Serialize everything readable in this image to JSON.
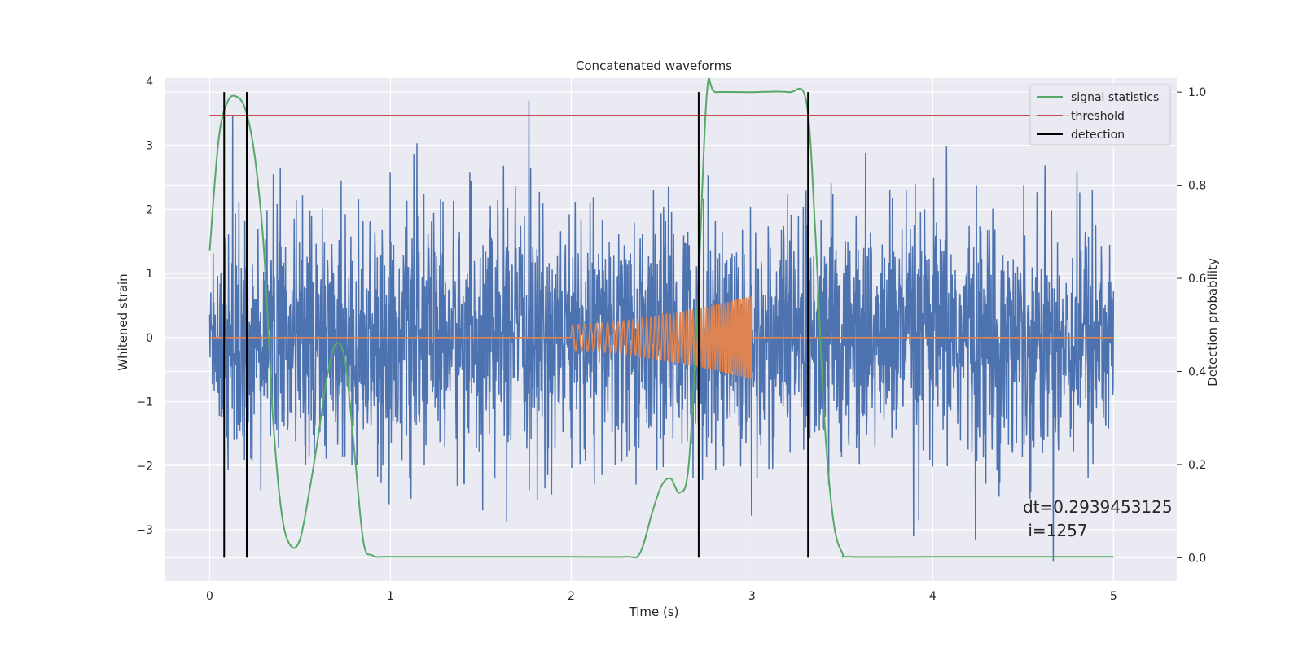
{
  "chart_data": {
    "type": "line",
    "title": "Concatenated waveforms",
    "xlabel": "Time (s)",
    "ylabel": "Whitened strain",
    "ylabel_right": "Detection probability",
    "xlim": [
      -0.25,
      5.35
    ],
    "ylim": [
      -3.8,
      4.05
    ],
    "ylim_right": [
      -0.05,
      1.03
    ],
    "x_ticks": [
      0,
      1,
      2,
      3,
      4,
      5
    ],
    "x_tick_labels": [
      "0",
      "1",
      "2",
      "3",
      "4",
      "5"
    ],
    "y_ticks": [
      -3,
      -2,
      -1,
      0,
      1,
      2,
      3,
      4
    ],
    "y_tick_labels": [
      "−3",
      "−2",
      "−1",
      "0",
      "1",
      "2",
      "3",
      "4"
    ],
    "y_right_ticks": [
      0.0,
      0.2,
      0.4,
      0.6,
      0.8,
      1.0
    ],
    "y_right_tick_labels": [
      "0.0",
      "0.2",
      "0.4",
      "0.6",
      "0.8",
      "1.0"
    ],
    "grid": true,
    "legend_position": "top-right",
    "series": [
      {
        "name": "",
        "color": "#4c72b0",
        "axis": "left",
        "kind": "noise",
        "x_range": [
          0,
          5
        ],
        "amplitude_range": [
          -3.5,
          3.7
        ]
      },
      {
        "name": "",
        "color": "#dd8452",
        "axis": "left",
        "kind": "chirp",
        "x_range": [
          0,
          5
        ],
        "chirp_range": [
          2.0,
          3.0
        ],
        "chirp_amplitude": [
          0.2,
          0.65
        ]
      },
      {
        "name": "signal statistics",
        "color": "#55a868",
        "axis": "right",
        "x": [
          0.0,
          0.05,
          0.1,
          0.15,
          0.2,
          0.25,
          0.3,
          0.35,
          0.4,
          0.45,
          0.5,
          0.55,
          0.6,
          0.65,
          0.7,
          0.75,
          0.8,
          0.85,
          0.9,
          1.0,
          1.5,
          2.0,
          2.3,
          2.38,
          2.45,
          2.5,
          2.55,
          2.6,
          2.65,
          2.7,
          2.75,
          2.8,
          3.0,
          3.2,
          3.3,
          3.35,
          3.4,
          3.45,
          3.5,
          3.55,
          4.0,
          4.5,
          5.0
        ],
        "y": [
          0.66,
          0.9,
          0.98,
          0.99,
          0.96,
          0.86,
          0.66,
          0.3,
          0.09,
          0.025,
          0.04,
          0.14,
          0.26,
          0.39,
          0.46,
          0.42,
          0.23,
          0.035,
          0.005,
          0.002,
          0.002,
          0.002,
          0.002,
          0.01,
          0.1,
          0.155,
          0.17,
          0.14,
          0.2,
          0.55,
          0.995,
          1.0,
          1.0,
          1.0,
          0.98,
          0.7,
          0.3,
          0.08,
          0.01,
          0.002,
          0.002,
          0.002,
          0.002
        ]
      },
      {
        "name": "threshold",
        "color": "#c44e52",
        "axis": "right",
        "x": [
          0.0,
          5.05
        ],
        "y": [
          0.95,
          0.95
        ]
      },
      {
        "name": "detection",
        "color": "#000000",
        "axis": "right",
        "vlines": [
          0.08,
          0.205,
          2.705,
          3.31
        ],
        "vline_range": [
          0.0,
          1.0
        ]
      }
    ],
    "annotation_line1": "dt=0.2939453125",
    "annotation_line2": " i=1257"
  }
}
